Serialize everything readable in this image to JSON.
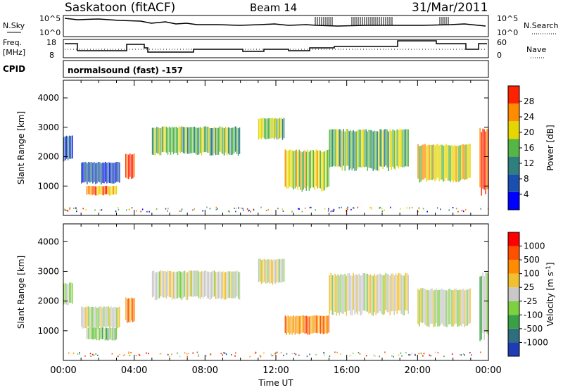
{
  "header": {
    "station": "Saskatoon (fitACF)",
    "beam": "Beam 14",
    "date": "31/Mar/2011",
    "cpid_label": "CPID",
    "cpid_value": "normalsound (fast) -157"
  },
  "noise_panel": {
    "left_label": "N.Sky",
    "right_label": "N.Search",
    "left_ticks": [
      "10^5",
      "10^0"
    ],
    "right_ticks": [
      "10^5",
      "10^0"
    ]
  },
  "freq_panel": {
    "left_label_1": "Freq.",
    "left_label_2": "[MHz]",
    "right_label": "Nave",
    "left_ticks": [
      "18",
      "8"
    ],
    "right_ticks": [
      "60",
      "0"
    ]
  },
  "chart_data": [
    {
      "type": "heatmap",
      "name": "power",
      "ylabel": "Slant Range [km]",
      "xlabel": "Time UT",
      "yticks": [
        "1000",
        "2000",
        "3000",
        "4000"
      ],
      "xticks": [
        "00:00",
        "04:00",
        "08:00",
        "12:00",
        "16:00",
        "20:00",
        "00:00"
      ],
      "xlim": [
        0,
        24
      ],
      "ylim": [
        0,
        4600
      ],
      "colorbar_label": "Power [dB]",
      "colorbar_ticks": [
        "4",
        "8",
        "12",
        "16",
        "20",
        "24",
        "28"
      ],
      "colors": [
        "#0000ff",
        "#1a4fb0",
        "#2f7f7f",
        "#55b545",
        "#e6d600",
        "#ff8c00",
        "#ff2200"
      ],
      "echo_regions": [
        {
          "t0": 0.0,
          "t1": 0.5,
          "r0": 1900,
          "r1": 2700,
          "level": 1
        },
        {
          "t0": 1.0,
          "t1": 3.2,
          "r0": 1100,
          "r1": 1800,
          "level": 1
        },
        {
          "t0": 1.3,
          "t1": 3.0,
          "r0": 700,
          "r1": 1000,
          "level": 5
        },
        {
          "t0": 3.5,
          "t1": 4.0,
          "r0": 1300,
          "r1": 2100,
          "level": 5
        },
        {
          "t0": 5.0,
          "t1": 10.0,
          "r0": 2100,
          "r1": 3000,
          "level": 3
        },
        {
          "t0": 11.0,
          "t1": 12.5,
          "r0": 2600,
          "r1": 3300,
          "level": 3
        },
        {
          "t0": 12.5,
          "t1": 15.0,
          "r0": 900,
          "r1": 2200,
          "level": 4
        },
        {
          "t0": 15.0,
          "t1": 19.5,
          "r0": 1600,
          "r1": 2900,
          "level": 3
        },
        {
          "t0": 20.0,
          "t1": 23.0,
          "r0": 1200,
          "r1": 2400,
          "level": 4
        },
        {
          "t0": 23.5,
          "t1": 24.0,
          "r0": 800,
          "r1": 2900,
          "level": 6
        }
      ]
    },
    {
      "type": "heatmap",
      "name": "velocity",
      "ylabel": "Slant Range [km]",
      "xlabel": "Time UT",
      "yticks": [
        "1000",
        "2000",
        "3000",
        "4000"
      ],
      "xticks": [
        "00:00",
        "04:00",
        "08:00",
        "12:00",
        "16:00",
        "20:00",
        "00:00"
      ],
      "xlim": [
        0,
        24
      ],
      "ylim": [
        0,
        4600
      ],
      "colorbar_label": "Velocity [m s^-1]",
      "colorbar_ticks": [
        "1000",
        "500",
        "100",
        "25",
        "-25",
        "-100",
        "-500",
        "-1000"
      ],
      "colors": [
        "#1e3cb4",
        "#2f6e7e",
        "#3aa045",
        "#7dd040",
        "#c8c8c8",
        "#f0c030",
        "#ff8c00",
        "#ff5000",
        "#ff0000"
      ],
      "echo_regions": [
        {
          "t0": 0.0,
          "t1": 0.5,
          "r0": 1900,
          "r1": 2600,
          "level": 4
        },
        {
          "t0": 1.0,
          "t1": 3.2,
          "r0": 1100,
          "r1": 1800,
          "level": 4
        },
        {
          "t0": 1.3,
          "t1": 3.0,
          "r0": 700,
          "r1": 1100,
          "level": 3
        },
        {
          "t0": 3.5,
          "t1": 4.0,
          "r0": 1300,
          "r1": 2100,
          "level": 6
        },
        {
          "t0": 5.0,
          "t1": 10.0,
          "r0": 2100,
          "r1": 3000,
          "level": 4
        },
        {
          "t0": 11.0,
          "t1": 12.5,
          "r0": 2600,
          "r1": 3400,
          "level": 4
        },
        {
          "t0": 12.5,
          "t1": 15.0,
          "r0": 900,
          "r1": 1500,
          "level": 6
        },
        {
          "t0": 15.0,
          "t1": 19.5,
          "r0": 1600,
          "r1": 2900,
          "level": 4
        },
        {
          "t0": 20.0,
          "t1": 23.0,
          "r0": 1200,
          "r1": 2400,
          "level": 4
        },
        {
          "t0": 23.5,
          "t1": 24.0,
          "r0": 800,
          "r1": 2900,
          "level": 3
        }
      ]
    }
  ]
}
